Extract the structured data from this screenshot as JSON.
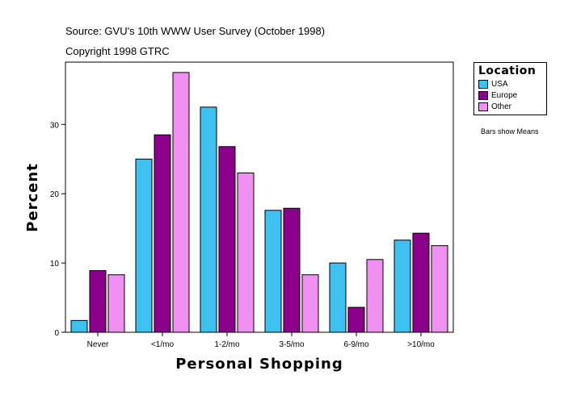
{
  "header": {
    "source": "Source: GVU's 10th WWW User Survey (October 1998)",
    "copyright": "Copyright 1998 GTRC"
  },
  "legend": {
    "title": "Location",
    "items": [
      {
        "label": "USA",
        "color": "#40c0f0"
      },
      {
        "label": "Europe",
        "color": "#8b008b"
      },
      {
        "label": "Other",
        "color": "#f090f0"
      }
    ]
  },
  "note": "Bars show Means",
  "chart_data": {
    "type": "bar",
    "title": "",
    "xlabel": "Personal Shopping",
    "ylabel": "Percent",
    "categories": [
      "Never",
      "<1/mo",
      "1-2/mo",
      "3-5/mo",
      "6-9/mo",
      ">10/mo"
    ],
    "series": [
      {
        "name": "USA",
        "color": "#40c0f0",
        "values": [
          1.7,
          25.0,
          32.5,
          17.6,
          10.0,
          13.3
        ]
      },
      {
        "name": "Europe",
        "color": "#8b008b",
        "values": [
          8.9,
          28.5,
          26.8,
          17.9,
          3.6,
          14.3
        ]
      },
      {
        "name": "Other",
        "color": "#f090f0",
        "values": [
          8.3,
          37.5,
          23.0,
          8.3,
          10.5,
          12.5
        ]
      }
    ],
    "yticks": [
      0,
      10,
      20,
      30
    ],
    "ylim": [
      0,
      39.0
    ],
    "grid": false,
    "legend_position": "right"
  }
}
